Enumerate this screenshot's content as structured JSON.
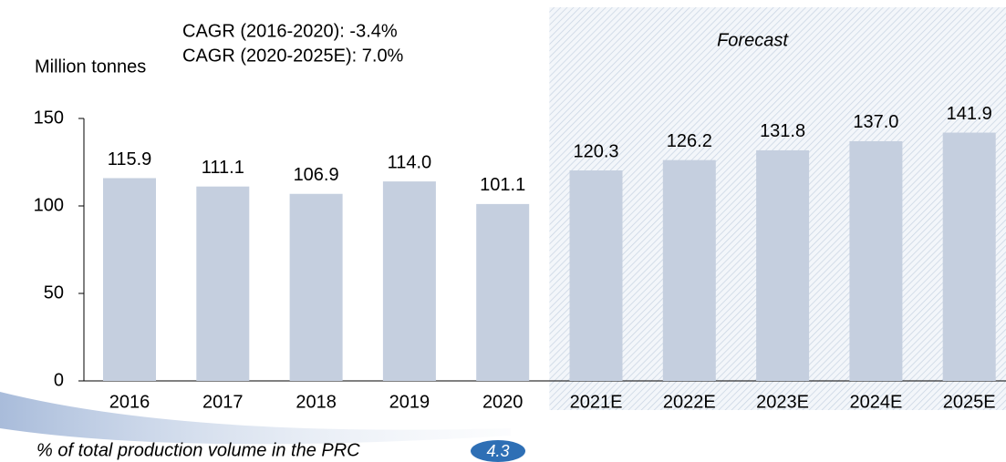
{
  "chart_data": {
    "type": "bar",
    "y_label": "Million tonnes",
    "annotations": [
      "CAGR (2016-2020): -3.4%",
      "CAGR (2020-2025E): 7.0%"
    ],
    "forecast_label": "Forecast",
    "categories": [
      "2016",
      "2017",
      "2018",
      "2019",
      "2020",
      "2021E",
      "2022E",
      "2023E",
      "2024E",
      "2025E"
    ],
    "values": [
      115.9,
      111.1,
      106.9,
      114.0,
      101.1,
      120.3,
      126.2,
      131.8,
      137.0,
      141.9
    ],
    "value_labels": [
      "115.9",
      "111.1",
      "106.9",
      "114.0",
      "101.1",
      "120.3",
      "126.2",
      "131.8",
      "137.0",
      "141.9"
    ],
    "color": "#c5cfdf",
    "ylim": [
      0,
      150
    ],
    "yticks": [
      0,
      50,
      100,
      150
    ],
    "grid": false,
    "footer": "% of total production volume in the PRC",
    "footer_value": 4.3
  }
}
